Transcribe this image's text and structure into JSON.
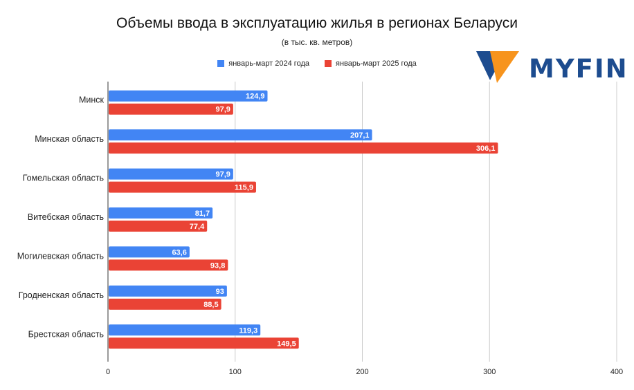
{
  "chart_data": {
    "type": "bar",
    "orientation": "horizontal",
    "title": "Объемы ввода в эксплуатацию жилья в регионах Беларуси",
    "subtitle": "(в тыс. кв. метров)",
    "categories": [
      "Минск",
      "Минская область",
      "Гомельская область",
      "Витебская область",
      "Могилевская область",
      "Гродненская область",
      "Брестская область"
    ],
    "series": [
      {
        "name": "январь-март 2024 года",
        "color": "#4285f4",
        "values": [
          124.9,
          207.1,
          97.9,
          81.7,
          63.6,
          93,
          119.3
        ],
        "labels": [
          "124,9",
          "207,1",
          "97,9",
          "81,7",
          "63,6",
          "93",
          "119,3"
        ]
      },
      {
        "name": "январь-март 2025 года",
        "color": "#ea4335",
        "values": [
          97.9,
          306.1,
          115.9,
          77.4,
          93.8,
          88.5,
          149.5
        ],
        "labels": [
          "97,9",
          "306,1",
          "115,9",
          "77,4",
          "93,8",
          "88,5",
          "149,5"
        ]
      }
    ],
    "xlim": [
      0,
      400
    ],
    "xticks": [
      "0",
      "100",
      "200",
      "300",
      "400"
    ],
    "grid": true,
    "legend_position": "top"
  },
  "logo": {
    "text": "MYFIN"
  }
}
